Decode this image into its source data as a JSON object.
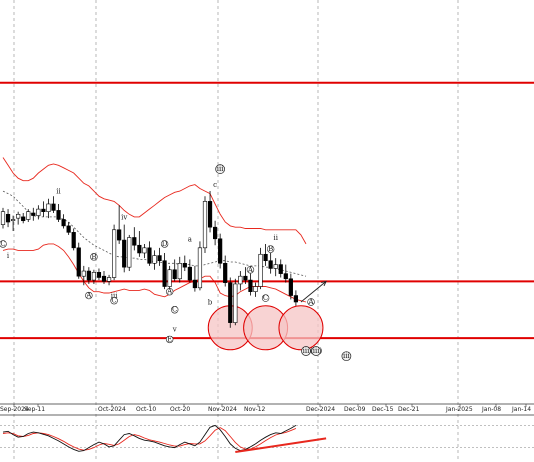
{
  "chart_data": {
    "type": "candlestick",
    "colors": {
      "bull": "#ffffff",
      "bear": "#000000",
      "bands": "#e8281e",
      "sma": "#555555",
      "support_resistance": "#e00000",
      "circle_fill": "#f6c4c4",
      "grid": "#9a9a9a",
      "stoch_k": "#111111",
      "stoch_d": "#e8281e"
    },
    "x_tick_labels": [
      "Sep-2024",
      "Sep-11",
      "Oct-2024",
      "Oct-10",
      "Oct-20",
      "Nov-2024",
      "Nov-12",
      "Dec-2024",
      "Dec-09",
      "Dec-15",
      "Dec-21",
      "Jan-2025",
      "Jan-08",
      "Jan-14"
    ],
    "candles": [
      {
        "o": 60,
        "h": 73,
        "l": 57,
        "c": 70
      },
      {
        "o": 68,
        "h": 72,
        "l": 58,
        "c": 62
      },
      {
        "o": 63,
        "h": 67,
        "l": 55,
        "c": 64
      },
      {
        "o": 65,
        "h": 70,
        "l": 60,
        "c": 68
      },
      {
        "o": 66,
        "h": 69,
        "l": 61,
        "c": 63
      },
      {
        "o": 64,
        "h": 72,
        "l": 62,
        "c": 70
      },
      {
        "o": 69,
        "h": 73,
        "l": 63,
        "c": 67
      },
      {
        "o": 67,
        "h": 75,
        "l": 64,
        "c": 72
      },
      {
        "o": 72,
        "h": 78,
        "l": 66,
        "c": 70
      },
      {
        "o": 70,
        "h": 80,
        "l": 65,
        "c": 76
      },
      {
        "o": 76,
        "h": 82,
        "l": 69,
        "c": 71
      },
      {
        "o": 71,
        "h": 76,
        "l": 62,
        "c": 64
      },
      {
        "o": 64,
        "h": 68,
        "l": 57,
        "c": 59
      },
      {
        "o": 59,
        "h": 62,
        "l": 52,
        "c": 54
      },
      {
        "o": 54,
        "h": 57,
        "l": 40,
        "c": 42
      },
      {
        "o": 42,
        "h": 46,
        "l": 18,
        "c": 20
      },
      {
        "o": 20,
        "h": 28,
        "l": 13,
        "c": 24
      },
      {
        "o": 24,
        "h": 27,
        "l": 14,
        "c": 17
      },
      {
        "o": 17,
        "h": 25,
        "l": 14,
        "c": 23
      },
      {
        "o": 23,
        "h": 26,
        "l": 17,
        "c": 19
      },
      {
        "o": 20,
        "h": 24,
        "l": 14,
        "c": 16
      },
      {
        "o": 16,
        "h": 21,
        "l": 13,
        "c": 19
      },
      {
        "o": 19,
        "h": 60,
        "l": 17,
        "c": 56
      },
      {
        "o": 56,
        "h": 75,
        "l": 45,
        "c": 48
      },
      {
        "o": 48,
        "h": 60,
        "l": 23,
        "c": 27
      },
      {
        "o": 27,
        "h": 52,
        "l": 24,
        "c": 50
      },
      {
        "o": 50,
        "h": 58,
        "l": 40,
        "c": 44
      },
      {
        "o": 44,
        "h": 55,
        "l": 35,
        "c": 38
      },
      {
        "o": 38,
        "h": 45,
        "l": 34,
        "c": 42
      },
      {
        "o": 42,
        "h": 47,
        "l": 28,
        "c": 30
      },
      {
        "o": 30,
        "h": 40,
        "l": 25,
        "c": 36
      },
      {
        "o": 36,
        "h": 42,
        "l": 28,
        "c": 32
      },
      {
        "o": 32,
        "h": 38,
        "l": 10,
        "c": 12
      },
      {
        "o": 12,
        "h": 28,
        "l": 8,
        "c": 25
      },
      {
        "o": 25,
        "h": 33,
        "l": 16,
        "c": 18
      },
      {
        "o": 18,
        "h": 35,
        "l": 15,
        "c": 30
      },
      {
        "o": 30,
        "h": 36,
        "l": 24,
        "c": 27
      },
      {
        "o": 27,
        "h": 33,
        "l": 15,
        "c": 17
      },
      {
        "o": 17,
        "h": 28,
        "l": 8,
        "c": 11
      },
      {
        "o": 11,
        "h": 47,
        "l": 9,
        "c": 42
      },
      {
        "o": 42,
        "h": 82,
        "l": 38,
        "c": 78
      },
      {
        "o": 78,
        "h": 86,
        "l": 54,
        "c": 58
      },
      {
        "o": 58,
        "h": 63,
        "l": 44,
        "c": 49
      },
      {
        "o": 49,
        "h": 53,
        "l": 26,
        "c": 30
      },
      {
        "o": 30,
        "h": 36,
        "l": 12,
        "c": 15
      },
      {
        "o": 15,
        "h": 19,
        "l": -20,
        "c": -16
      },
      {
        "o": -16,
        "h": 18,
        "l": -18,
        "c": 14
      },
      {
        "o": 14,
        "h": 24,
        "l": 9,
        "c": 20
      },
      {
        "o": 20,
        "h": 27,
        "l": 14,
        "c": 17
      },
      {
        "o": 17,
        "h": 22,
        "l": 5,
        "c": 8
      },
      {
        "o": 8,
        "h": 15,
        "l": 4,
        "c": 12
      },
      {
        "o": 12,
        "h": 42,
        "l": 10,
        "c": 37
      },
      {
        "o": 37,
        "h": 45,
        "l": 28,
        "c": 32
      },
      {
        "o": 32,
        "h": 38,
        "l": 22,
        "c": 26
      },
      {
        "o": 26,
        "h": 34,
        "l": 20,
        "c": 29
      },
      {
        "o": 29,
        "h": 33,
        "l": 19,
        "c": 22
      },
      {
        "o": 22,
        "h": 29,
        "l": 15,
        "c": 18
      },
      {
        "o": 18,
        "h": 22,
        "l": 2,
        "c": 5
      },
      {
        "o": 5,
        "h": 9,
        "l": -3,
        "c": 0
      }
    ],
    "bb_upper": [
      112,
      106,
      100,
      96,
      94,
      94,
      96,
      100,
      103,
      106,
      107,
      106,
      104,
      102,
      100,
      96,
      92,
      90,
      86,
      82,
      80,
      79,
      78,
      75,
      71,
      68,
      66,
      66,
      69,
      72,
      75,
      78,
      81,
      83,
      85,
      86,
      88,
      90,
      91,
      88,
      86,
      84,
      76,
      68,
      62,
      59,
      58,
      58,
      57,
      57,
      57,
      57,
      56,
      56,
      56,
      56,
      56,
      56,
      56,
      52,
      45
    ],
    "bb_lower": [
      40,
      41,
      41,
      40,
      40,
      40,
      40,
      41,
      44,
      45,
      45,
      43,
      40,
      35,
      29,
      22,
      16,
      11,
      8,
      8,
      7,
      7,
      8,
      9,
      10,
      9,
      9,
      9,
      10,
      9,
      6,
      5,
      4,
      6,
      9,
      11,
      13,
      15,
      16,
      18,
      20,
      20,
      15,
      7,
      5,
      4,
      5,
      8,
      10,
      12,
      12,
      12,
      12,
      11,
      10,
      8,
      6,
      4,
      2,
      1,
      0
    ],
    "sma": [
      86,
      84,
      82,
      78,
      74,
      70,
      67,
      66,
      66,
      66,
      66,
      66,
      64,
      62,
      58,
      54,
      50,
      47,
      44,
      42,
      40,
      38,
      36,
      35,
      35,
      34,
      34,
      33,
      33,
      32,
      31,
      31,
      30,
      30,
      30,
      29,
      29,
      29,
      28,
      28,
      29,
      30,
      31,
      32,
      32,
      31,
      31,
      30,
      29,
      28,
      28,
      28,
      27,
      27,
      26,
      25,
      24,
      23,
      22,
      21,
      20
    ],
    "levels": {
      "top": 170,
      "middle": 16,
      "bottom": -28
    },
    "circles": [
      {
        "i": 45,
        "v": -20
      },
      {
        "i": 52,
        "v": -20
      },
      {
        "i": 59,
        "v": -20
      }
    ],
    "arrow": {
      "from": {
        "i": 59,
        "v": 0
      },
      "to": {
        "i": 62,
        "v": 16
      }
    },
    "wave_labels": [
      {
        "text": "i",
        "i": 1,
        "v": 34
      },
      {
        "text": "ii",
        "i": 11,
        "v": 84
      },
      {
        "text": "iii",
        "i": 22,
        "v": 3
      },
      {
        "text": "iv",
        "i": 24,
        "v": 64
      },
      {
        "text": "v",
        "i": 34,
        "v": -23
      },
      {
        "text": "a",
        "i": 37,
        "v": 47
      },
      {
        "text": "b",
        "i": 41,
        "v": -2
      },
      {
        "text": "c",
        "i": 42,
        "v": 89
      },
      {
        "text": "ii",
        "i": 54,
        "v": 48
      }
    ],
    "circled_labels": [
      {
        "text": "C",
        "i": 0,
        "v": 45
      },
      {
        "text": "B",
        "i": 18,
        "v": 35
      },
      {
        "text": "A",
        "i": 17,
        "v": 5
      },
      {
        "text": "C",
        "i": 22,
        "v": 1
      },
      {
        "text": "D",
        "i": 32,
        "v": 45
      },
      {
        "text": "C",
        "i": 34,
        "v": -6
      },
      {
        "text": "A",
        "i": 33,
        "v": 8
      },
      {
        "text": "E",
        "i": 33,
        "v": -29
      },
      {
        "text": "B",
        "i": 53,
        "v": 41
      },
      {
        "text": "A",
        "i": 49,
        "v": 25
      },
      {
        "text": "C",
        "i": 52,
        "v": 3
      },
      {
        "text": "A",
        "i": 61,
        "v": 0
      }
    ],
    "boxed_labels": [
      {
        "text": "iii",
        "i": 43,
        "v": 103
      },
      {
        "text": "iii",
        "i": 60,
        "v": -38
      },
      {
        "text": "(iii)",
        "i": 62,
        "v": -38
      },
      {
        "text": "iii",
        "i": 68,
        "v": -42
      }
    ],
    "stoch_k": [
      62,
      64,
      55,
      48,
      50,
      58,
      62,
      60,
      56,
      52,
      45,
      38,
      30,
      22,
      15,
      10,
      12,
      20,
      28,
      35,
      30,
      22,
      25,
      40,
      55,
      58,
      52,
      45,
      40,
      38,
      35,
      30,
      25,
      22,
      20,
      28,
      35,
      30,
      25,
      35,
      55,
      75,
      80,
      68,
      50,
      30,
      18,
      12,
      15,
      22,
      30,
      40,
      48,
      55,
      60,
      58,
      65,
      72,
      80
    ],
    "stoch_d": [
      58,
      60,
      58,
      52,
      50,
      53,
      58,
      60,
      58,
      55,
      50,
      44,
      37,
      29,
      22,
      16,
      13,
      15,
      20,
      27,
      31,
      29,
      26,
      30,
      40,
      50,
      55,
      52,
      46,
      41,
      38,
      35,
      31,
      27,
      24,
      24,
      28,
      31,
      30,
      30,
      38,
      52,
      67,
      74,
      66,
      50,
      34,
      22,
      16,
      16,
      22,
      30,
      39,
      47,
      54,
      58,
      61,
      66,
      72
    ],
    "stoch_trendline": [
      {
        "i": 46,
        "v": 8
      },
      {
        "i": 62,
        "v": 45
      }
    ]
  }
}
